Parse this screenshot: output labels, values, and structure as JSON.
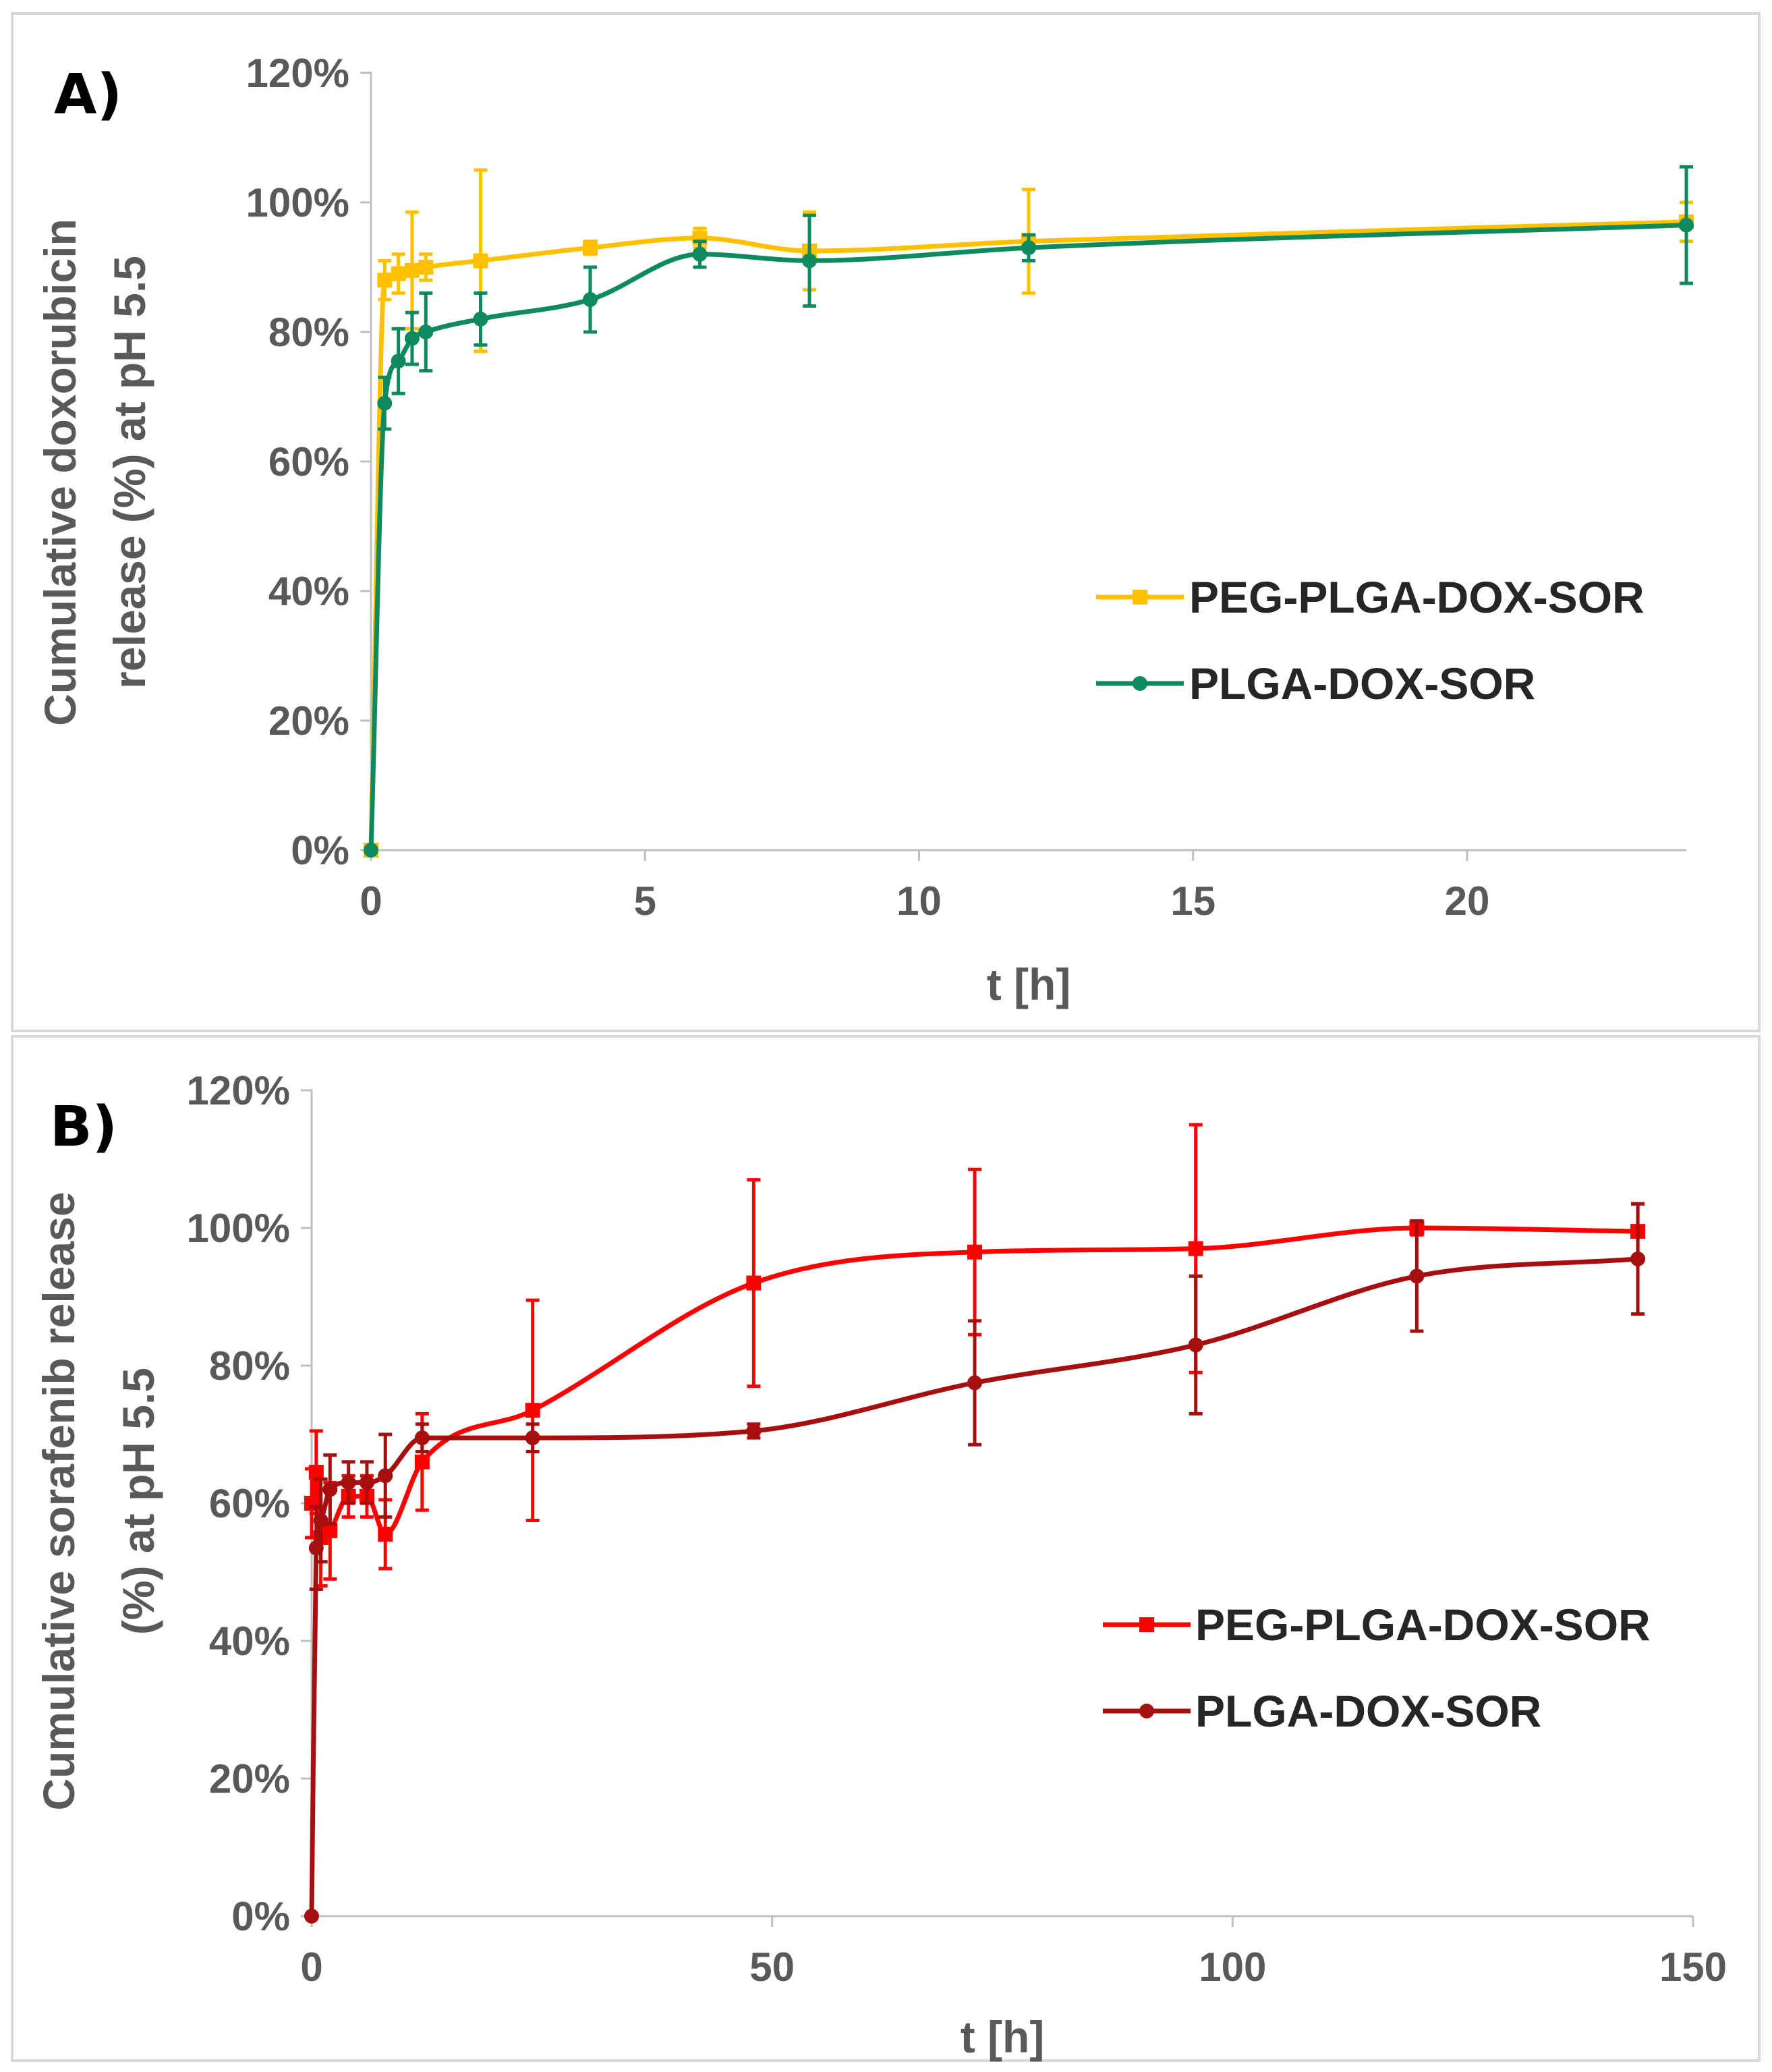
{
  "charts": [
    {
      "panel_label": "A)",
      "type": "line",
      "title": "",
      "xlabel": "t [h]",
      "ylabel_lines": [
        "Cumulative doxorubicin",
        "release (%) at pH 5.5"
      ],
      "xlim": [
        0,
        24
      ],
      "ylim": [
        0,
        120
      ],
      "xticks": [
        0,
        5,
        10,
        15,
        20
      ],
      "xtick_labels": [
        "0",
        "5",
        "10",
        "15",
        "20"
      ],
      "yticks": [
        0,
        20,
        40,
        60,
        80,
        100,
        120
      ],
      "ytick_labels": [
        "0%",
        "20%",
        "40%",
        "60%",
        "80%",
        "100%",
        "120%"
      ],
      "legend": "right",
      "series": [
        {
          "name": "PEG-PLGA-DOX-SOR",
          "color": "#FFC000",
          "marker": "square",
          "x": [
            0,
            0.25,
            0.5,
            0.75,
            1,
            2,
            4,
            6,
            8,
            12,
            24
          ],
          "y": [
            0,
            88,
            89,
            89.5,
            90,
            91,
            93,
            94.5,
            92.5,
            94,
            97
          ],
          "err": [
            0,
            3,
            3,
            9,
            2,
            14,
            1,
            1.5,
            6,
            8,
            3
          ]
        },
        {
          "name": "PLGA-DOX-SOR",
          "color": "#0F8A5F",
          "marker": "circle",
          "x": [
            0,
            0.25,
            0.5,
            0.75,
            1,
            2,
            4,
            6,
            8,
            12,
            24
          ],
          "y": [
            0,
            69,
            75.5,
            79,
            80,
            82,
            85,
            92,
            91,
            93,
            96.5
          ],
          "err": [
            0,
            4,
            5,
            4,
            6,
            4,
            5,
            2,
            7,
            2,
            9
          ]
        }
      ]
    },
    {
      "panel_label": "B)",
      "type": "line",
      "title": "",
      "xlabel": "t [h]",
      "ylabel_lines": [
        "Cumulative sorafenib release",
        "(%) at pH 5.5"
      ],
      "xlim": [
        0,
        150
      ],
      "ylim": [
        0,
        120
      ],
      "xticks": [
        0,
        50,
        100,
        150
      ],
      "xtick_labels": [
        "0",
        "50",
        "100",
        "150"
      ],
      "yticks": [
        0,
        20,
        40,
        60,
        80,
        100,
        120
      ],
      "ytick_labels": [
        "0%",
        "20%",
        "40%",
        "60%",
        "80%",
        "100%",
        "120%"
      ],
      "legend": "right",
      "series": [
        {
          "name": "PEG-PLGA-DOX-SOR",
          "color": "#FF0000",
          "marker": "square",
          "x": [
            0,
            0.5,
            1,
            2,
            4,
            6,
            8,
            12,
            24,
            48,
            72,
            96,
            120,
            144
          ],
          "y": [
            60,
            64.5,
            55,
            56,
            61,
            61,
            55.5,
            66,
            73.5,
            92,
            96.5,
            97,
            100,
            99.5
          ],
          "err": [
            5,
            6,
            7,
            7,
            3,
            3,
            5,
            7,
            16,
            15,
            12,
            18,
            1,
            4
          ]
        },
        {
          "name": "PLGA-DOX-SOR",
          "color": "#A50F0F",
          "marker": "circle",
          "x": [
            0,
            0.5,
            1,
            2,
            4,
            6,
            8,
            12,
            24,
            48,
            72,
            96,
            120,
            144
          ],
          "y": [
            0,
            53.5,
            57.5,
            62,
            63,
            63,
            64,
            69.5,
            69.5,
            70.5,
            77.5,
            83,
            93,
            95.5
          ],
          "err": [
            0,
            6,
            6,
            5,
            3,
            3,
            6,
            2,
            2,
            1,
            9,
            10,
            8,
            8
          ]
        }
      ]
    }
  ],
  "chart_data": [
    {
      "type": "line",
      "title": "A)",
      "xlabel": "t [h]",
      "ylabel": "Cumulative doxorubicin release (%) at pH 5.5",
      "xlim": [
        0,
        24
      ],
      "ylim": [
        0,
        120
      ],
      "x": [
        0,
        0.25,
        0.5,
        0.75,
        1,
        2,
        4,
        6,
        8,
        12,
        24
      ],
      "series": [
        {
          "name": "PEG-PLGA-DOX-SOR",
          "values": [
            0,
            88,
            89,
            89.5,
            90,
            91,
            93,
            94.5,
            92.5,
            94,
            97
          ],
          "errors": [
            0,
            3,
            3,
            9,
            2,
            14,
            1,
            1.5,
            6,
            8,
            3
          ]
        },
        {
          "name": "PLGA-DOX-SOR",
          "values": [
            0,
            69,
            75.5,
            79,
            80,
            82,
            85,
            92,
            91,
            93,
            96.5
          ],
          "errors": [
            0,
            4,
            5,
            4,
            6,
            4,
            5,
            2,
            7,
            2,
            9
          ]
        }
      ]
    },
    {
      "type": "line",
      "title": "B)",
      "xlabel": "t [h]",
      "ylabel": "Cumulative sorafenib release (%) at pH 5.5",
      "xlim": [
        0,
        150
      ],
      "ylim": [
        0,
        120
      ],
      "x": [
        0,
        0.5,
        1,
        2,
        4,
        6,
        8,
        12,
        24,
        48,
        72,
        96,
        120,
        144
      ],
      "series": [
        {
          "name": "PEG-PLGA-DOX-SOR",
          "values": [
            60,
            64.5,
            55,
            56,
            61,
            61,
            55.5,
            66,
            73.5,
            92,
            96.5,
            97,
            100,
            99.5
          ],
          "errors": [
            5,
            6,
            7,
            7,
            3,
            3,
            5,
            7,
            16,
            15,
            12,
            18,
            1,
            4
          ]
        },
        {
          "name": "PLGA-DOX-SOR",
          "values": [
            0,
            53.5,
            57.5,
            62,
            63,
            63,
            64,
            69.5,
            69.5,
            70.5,
            77.5,
            83,
            93,
            95.5
          ],
          "errors": [
            0,
            6,
            6,
            5,
            3,
            3,
            6,
            2,
            2,
            1,
            9,
            10,
            8,
            8
          ]
        }
      ]
    }
  ]
}
